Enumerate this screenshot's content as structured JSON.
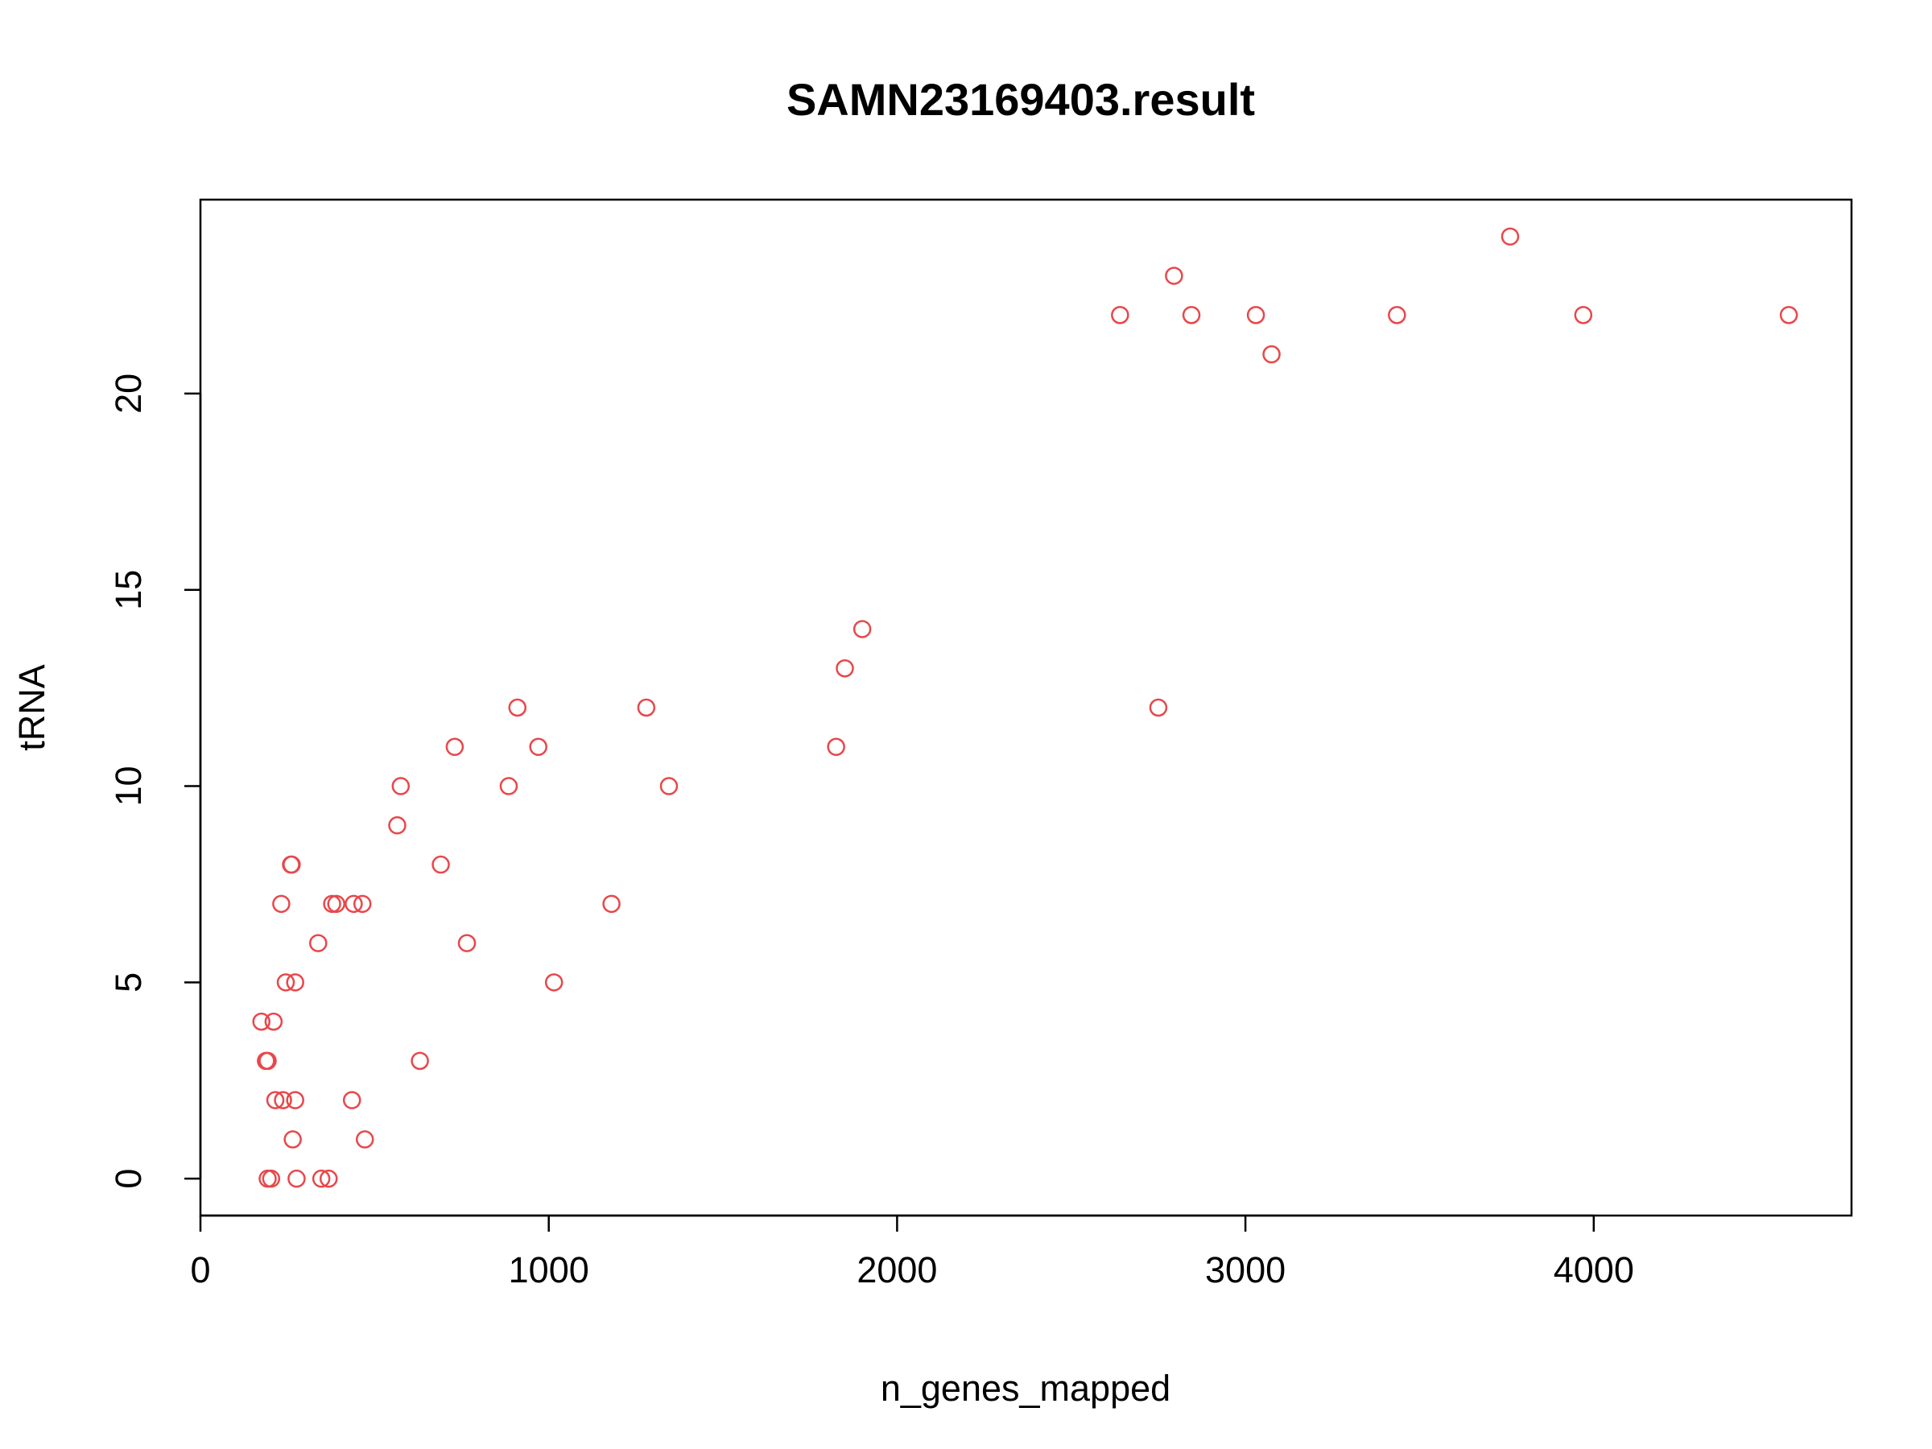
{
  "chart_data": {
    "type": "scatter",
    "title": "SAMN23169403.result",
    "xlabel": "n_genes_mapped",
    "ylabel": "tRNA",
    "xlim": [
      0,
      4740
    ],
    "ylim": [
      -0.94,
      24.94
    ],
    "x_ticks": [
      0,
      1000,
      2000,
      3000,
      4000
    ],
    "x_tick_labels": [
      "0",
      "1000",
      "2000",
      "3000",
      "4000"
    ],
    "y_ticks": [
      0,
      5,
      10,
      15,
      20
    ],
    "y_tick_labels": [
      "0",
      "5",
      "10",
      "15",
      "20"
    ],
    "grid": false,
    "legend": "none",
    "marker": "open-circle",
    "point_color": "#e8474b",
    "x": [
      3760,
      2795,
      2640,
      2845,
      3030,
      3435,
      3970,
      4560,
      3075,
      1900,
      1850,
      2750,
      1825,
      1345,
      1280,
      910,
      970,
      885,
      730,
      575,
      565,
      690,
      1180,
      765,
      1015,
      630,
      260,
      262,
      232,
      378,
      390,
      440,
      465,
      338,
      245,
      272,
      175,
      210,
      188,
      193,
      215,
      237,
      272,
      435,
      265,
      472,
      193,
      203,
      276,
      347,
      368
    ],
    "y": [
      24,
      23,
      22,
      22,
      22,
      22,
      22,
      22,
      21,
      14,
      13,
      12,
      11,
      10,
      12,
      12,
      11,
      10,
      11,
      10,
      9,
      8,
      7,
      6,
      5,
      3,
      8,
      8,
      7,
      7,
      7,
      7,
      7,
      6,
      5,
      5,
      4,
      4,
      3,
      3,
      2,
      2,
      2,
      2,
      1,
      1,
      0,
      0,
      0,
      0,
      0
    ]
  }
}
